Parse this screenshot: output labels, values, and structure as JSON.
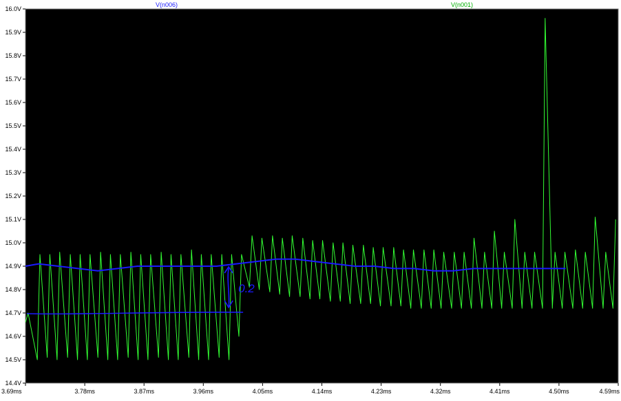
{
  "chart_data": {
    "type": "line",
    "title": "",
    "xlabel": "",
    "ylabel": "",
    "xlim": [
      3.69,
      4.59
    ],
    "ylim": [
      14.4,
      16.0
    ],
    "x_unit": "ms",
    "y_unit": "V",
    "grid": false,
    "legend_placement": "top",
    "x_ticks": [
      "3.69ms",
      "3.78ms",
      "3.87ms",
      "3.96ms",
      "4.05ms",
      "4.14ms",
      "4.23ms",
      "4.32ms",
      "4.41ms",
      "4.50ms",
      "4.59ms"
    ],
    "y_ticks": [
      "14.4V",
      "14.5V",
      "14.6V",
      "14.7V",
      "14.8V",
      "14.9V",
      "15.0V",
      "15.1V",
      "15.2V",
      "15.3V",
      "15.4V",
      "15.5V",
      "15.6V",
      "15.7V",
      "15.8V",
      "15.9V",
      "16.0V"
    ],
    "series": [
      {
        "name": "V(n006)",
        "color": "#1a1aff",
        "x": [
          3.69,
          3.71,
          3.74,
          3.77,
          3.8,
          3.83,
          3.86,
          3.89,
          3.92,
          3.95,
          3.98,
          4.01,
          4.04,
          4.07,
          4.1,
          4.13,
          4.16,
          4.19,
          4.22,
          4.25,
          4.28,
          4.31,
          4.34,
          4.37,
          4.4,
          4.43,
          4.46,
          4.49,
          4.51
        ],
        "values": [
          14.9,
          14.91,
          14.9,
          14.89,
          14.88,
          14.89,
          14.9,
          14.9,
          14.9,
          14.9,
          14.9,
          14.91,
          14.92,
          14.93,
          14.93,
          14.92,
          14.91,
          14.9,
          14.9,
          14.89,
          14.89,
          14.88,
          14.88,
          14.89,
          14.89,
          14.89,
          14.89,
          14.89,
          14.89
        ]
      },
      {
        "name": "V(n001)",
        "color": "#33ff33",
        "x": [
          3.69,
          3.694,
          3.708,
          3.712,
          3.723,
          3.727,
          3.738,
          3.742,
          3.754,
          3.758,
          3.769,
          3.773,
          3.784,
          3.788,
          3.8,
          3.804,
          3.815,
          3.819,
          3.83,
          3.834,
          3.846,
          3.85,
          3.861,
          3.865,
          3.876,
          3.88,
          3.892,
          3.896,
          3.907,
          3.911,
          3.922,
          3.926,
          3.938,
          3.942,
          3.953,
          3.957,
          3.968,
          3.972,
          3.984,
          3.988,
          3.999,
          4.003,
          4.014,
          4.018,
          4.03,
          4.034,
          4.045,
          4.049,
          4.061,
          4.065,
          4.076,
          4.08,
          4.091,
          4.095,
          4.107,
          4.111,
          4.122,
          4.126,
          4.137,
          4.141,
          4.153,
          4.157,
          4.168,
          4.172,
          4.183,
          4.187,
          4.199,
          4.203,
          4.214,
          4.218,
          4.229,
          4.233,
          4.245,
          4.249,
          4.26,
          4.264,
          4.275,
          4.279,
          4.291,
          4.295,
          4.306,
          4.31,
          4.321,
          4.325,
          4.337,
          4.341,
          4.352,
          4.356,
          4.367,
          4.371,
          4.383,
          4.387,
          4.398,
          4.402,
          4.413,
          4.417,
          4.429,
          4.433,
          4.444,
          4.448,
          4.459,
          4.463,
          4.475,
          4.479,
          4.49,
          4.494,
          4.505,
          4.509,
          4.521,
          4.525,
          4.536,
          4.54,
          4.551,
          4.555,
          4.567,
          4.571,
          4.582,
          4.586
        ],
        "values": [
          14.66,
          14.7,
          14.5,
          14.95,
          14.51,
          14.95,
          14.5,
          14.96,
          14.51,
          14.95,
          14.5,
          14.95,
          14.5,
          14.95,
          14.51,
          14.96,
          14.5,
          14.95,
          14.5,
          14.95,
          14.51,
          14.96,
          14.5,
          14.95,
          14.5,
          14.95,
          14.51,
          14.96,
          14.5,
          14.95,
          14.5,
          14.95,
          14.51,
          14.97,
          14.5,
          14.95,
          14.5,
          14.95,
          14.51,
          14.95,
          14.5,
          14.95,
          14.6,
          14.95,
          14.81,
          15.03,
          14.8,
          15.02,
          14.79,
          15.03,
          14.78,
          15.02,
          14.77,
          15.03,
          14.77,
          15.02,
          14.76,
          15.01,
          14.76,
          15.01,
          14.75,
          15.0,
          14.75,
          15.0,
          14.74,
          14.99,
          14.74,
          14.99,
          14.74,
          14.98,
          14.73,
          14.98,
          14.73,
          14.98,
          14.73,
          14.97,
          14.72,
          14.97,
          14.72,
          14.97,
          14.72,
          14.97,
          14.72,
          14.96,
          14.72,
          14.96,
          14.72,
          14.96,
          14.72,
          15.02,
          14.72,
          14.96,
          14.72,
          15.05,
          14.72,
          14.96,
          14.72,
          15.1,
          14.72,
          14.96,
          14.72,
          14.96,
          14.72,
          15.96,
          14.72,
          14.96,
          14.72,
          14.96,
          14.72,
          14.97,
          14.72,
          14.96,
          14.72,
          15.11,
          14.72,
          14.96,
          14.72,
          15.1
        ]
      }
    ],
    "annotations": [
      {
        "kind": "hand-drawn",
        "color": "#1a1aff",
        "text": "0.2",
        "description_x": [
          3.69,
          4.01
        ],
        "lower_level": 14.7,
        "upper_level": 14.9
      }
    ]
  }
}
